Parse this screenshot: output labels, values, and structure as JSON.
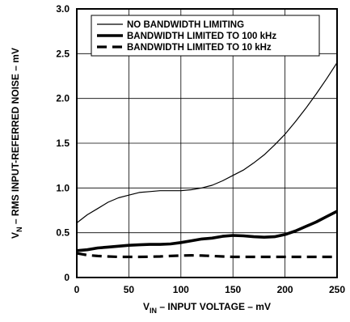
{
  "chart_data": {
    "type": "line",
    "xlabel": {
      "main": "V",
      "sub": "IN",
      "rest": " – INPUT VOLTAGE – mV"
    },
    "ylabel": {
      "main": "V",
      "sub": "N",
      "rest": " – RMS INPUT-REFERRED NOISE – mV"
    },
    "xlim": [
      0,
      250
    ],
    "ylim": [
      0,
      3.0
    ],
    "x_ticks": [
      0,
      50,
      100,
      150,
      200,
      250
    ],
    "y_ticks": [
      0,
      0.5,
      1.0,
      1.5,
      2.0,
      2.5,
      3.0
    ],
    "x_tick_labels": [
      "0",
      "50",
      "100",
      "150",
      "200",
      "250"
    ],
    "y_tick_labels": [
      "0",
      "0.5",
      "1.0",
      "1.5",
      "2.0",
      "2.5",
      "3.0"
    ],
    "grid": true,
    "legend_position": "top",
    "series": [
      {
        "name": "NO BANDWIDTH LIMITING",
        "style": "thin",
        "x": [
          0,
          10,
          20,
          30,
          40,
          50,
          60,
          70,
          80,
          90,
          100,
          110,
          120,
          130,
          140,
          150,
          160,
          170,
          180,
          190,
          200,
          210,
          220,
          230,
          240,
          250
        ],
        "values": [
          0.61,
          0.7,
          0.77,
          0.84,
          0.89,
          0.92,
          0.95,
          0.96,
          0.97,
          0.97,
          0.97,
          0.98,
          1.0,
          1.03,
          1.08,
          1.14,
          1.2,
          1.28,
          1.37,
          1.48,
          1.6,
          1.74,
          1.89,
          2.05,
          2.22,
          2.4
        ]
      },
      {
        "name": "BANDWIDTH LIMITED TO 100 kHz",
        "style": "thick",
        "x": [
          0,
          10,
          20,
          30,
          40,
          50,
          60,
          70,
          80,
          90,
          100,
          110,
          120,
          130,
          140,
          150,
          160,
          170,
          180,
          190,
          200,
          210,
          220,
          230,
          240,
          250
        ],
        "values": [
          0.3,
          0.31,
          0.33,
          0.34,
          0.35,
          0.36,
          0.365,
          0.37,
          0.37,
          0.375,
          0.39,
          0.41,
          0.43,
          0.44,
          0.46,
          0.47,
          0.465,
          0.455,
          0.45,
          0.455,
          0.48,
          0.52,
          0.57,
          0.62,
          0.68,
          0.74
        ]
      },
      {
        "name": "BANDWIDTH LIMITED TO 10 kHz",
        "style": "dashed",
        "x": [
          0,
          10,
          20,
          30,
          40,
          50,
          60,
          70,
          80,
          90,
          100,
          110,
          120,
          130,
          140,
          150,
          160,
          170,
          180,
          190,
          200,
          210,
          220,
          230,
          240,
          250
        ],
        "values": [
          0.27,
          0.25,
          0.24,
          0.235,
          0.23,
          0.23,
          0.23,
          0.232,
          0.235,
          0.24,
          0.245,
          0.248,
          0.245,
          0.24,
          0.235,
          0.23,
          0.23,
          0.23,
          0.23,
          0.23,
          0.23,
          0.23,
          0.23,
          0.23,
          0.23,
          0.23
        ]
      }
    ]
  }
}
